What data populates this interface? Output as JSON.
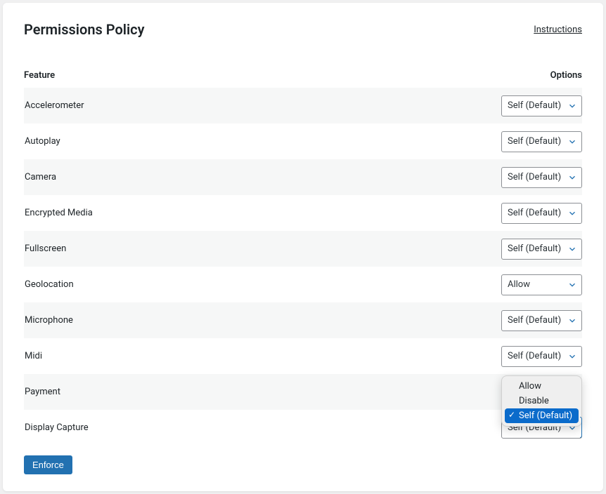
{
  "header": {
    "title": "Permissions Policy",
    "instructions_label": "Instructions"
  },
  "columns": {
    "feature": "Feature",
    "options": "Options"
  },
  "rows": [
    {
      "label": "Accelerometer",
      "value": "Self (Default)",
      "alt": true
    },
    {
      "label": "Autoplay",
      "value": "Self (Default)",
      "alt": false
    },
    {
      "label": "Camera",
      "value": "Self (Default)",
      "alt": true
    },
    {
      "label": "Encrypted Media",
      "value": "Self (Default)",
      "alt": false
    },
    {
      "label": "Fullscreen",
      "value": "Self (Default)",
      "alt": true
    },
    {
      "label": "Geolocation",
      "value": "Allow",
      "alt": false
    },
    {
      "label": "Microphone",
      "value": "Self (Default)",
      "alt": true
    },
    {
      "label": "Midi",
      "value": "Self (Default)",
      "alt": false
    },
    {
      "label": "Payment",
      "value": "Self (Default)",
      "alt": true,
      "open": true
    },
    {
      "label": "Display Capture",
      "value": "Self (Default)",
      "alt": false
    }
  ],
  "dropdown": {
    "visible_row_index": 8,
    "options": [
      "Allow",
      "Disable",
      "Self (Default)"
    ],
    "selected": "Self (Default)"
  },
  "button": {
    "label": "Enforce"
  },
  "colors": {
    "primary": "#2271b1",
    "dropdown_highlight": "#0b6bcb",
    "row_alt_bg": "#f6f7f7",
    "border": "#8c8f94",
    "text": "#1d2327"
  }
}
